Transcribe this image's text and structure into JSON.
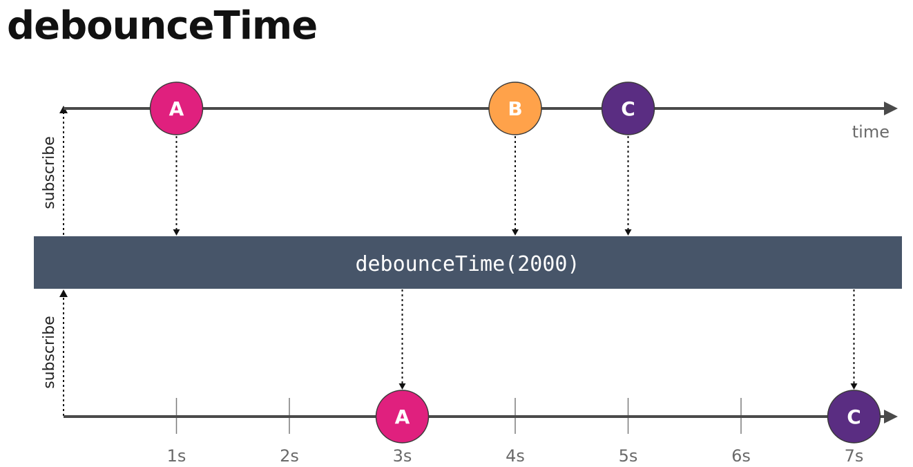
{
  "title": "debounceTime",
  "operator": {
    "label": "debounceTime(2000)"
  },
  "colors": {
    "pink": "#e0207e",
    "orange": "#ffa24a",
    "purple": "#5a2d82",
    "operator_bg": "#475569",
    "axis": "#4a4a4a"
  },
  "input": {
    "axis_label": "time",
    "subscribe_label": "subscribe",
    "marbles": [
      {
        "label": "A",
        "t": 1,
        "color": "pink"
      },
      {
        "label": "B",
        "t": 4,
        "color": "orange"
      },
      {
        "label": "C",
        "t": 5,
        "color": "purple"
      }
    ]
  },
  "output": {
    "subscribe_label": "subscribe",
    "ticks": [
      "1s",
      "2s",
      "3s",
      "4s",
      "5s",
      "6s",
      "7s"
    ],
    "marbles": [
      {
        "label": "A",
        "t": 3,
        "color": "pink"
      },
      {
        "label": "C",
        "t": 7,
        "color": "purple"
      }
    ]
  }
}
